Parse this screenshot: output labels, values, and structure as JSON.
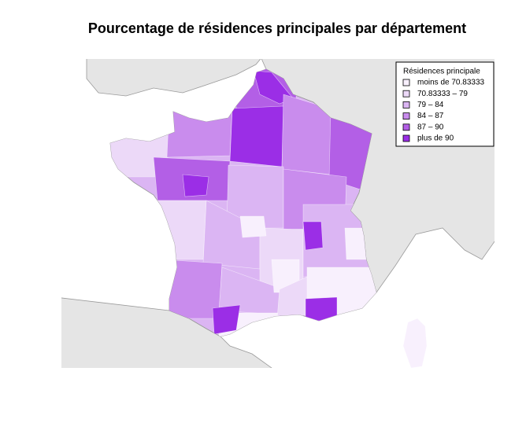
{
  "title": "Pourcentage de résidences principales par département",
  "legend": {
    "title": "Résidences principale",
    "items": [
      {
        "label": "moins de 70.83333",
        "color": "#f8f0fd"
      },
      {
        "label": "70.83333 – 79",
        "color": "#ecd9f8"
      },
      {
        "label": "79 – 84",
        "color": "#dbb5f3"
      },
      {
        "label": "84 – 87",
        "color": "#c98ced"
      },
      {
        "label": "87 – 90",
        "color": "#b35fe6"
      },
      {
        "label": "plus de 90",
        "color": "#9b2ee6"
      }
    ]
  }
}
